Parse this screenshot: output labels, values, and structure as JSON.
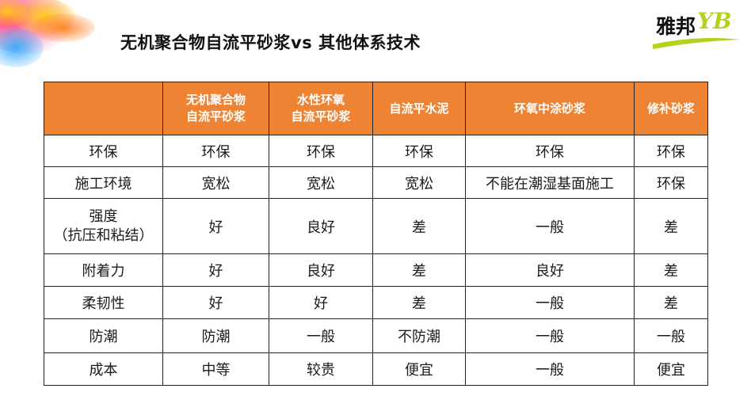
{
  "slide": {
    "title": "无机聚合物自流平砂浆vs 其他体系技术",
    "logo": {
      "text": "雅邦",
      "mark": "YB"
    }
  },
  "table": {
    "headers": [
      [
        ""
      ],
      [
        "无机聚合物",
        "自流平砂浆"
      ],
      [
        "水性环氧",
        "自流平砂浆"
      ],
      [
        "自流平水泥"
      ],
      [
        "环氧中涂砂浆"
      ],
      [
        "修补砂浆"
      ]
    ],
    "rows": [
      {
        "label": [
          "环保"
        ],
        "cells": [
          "环保",
          "环保",
          "环保",
          "环保",
          "环保"
        ]
      },
      {
        "label": [
          "施工环境"
        ],
        "cells": [
          "宽松",
          "宽松",
          "宽松",
          "不能在潮湿基面施工",
          "环保"
        ]
      },
      {
        "label": [
          "强度",
          "（抗压和粘结）"
        ],
        "cells": [
          "好",
          "良好",
          "差",
          "一般",
          "差"
        ]
      },
      {
        "label": [
          "附着力"
        ],
        "cells": [
          "好",
          "良好",
          "差",
          "良好",
          "差"
        ]
      },
      {
        "label": [
          "柔韧性"
        ],
        "cells": [
          "好",
          "好",
          "差",
          "一般",
          "差"
        ]
      },
      {
        "label": [
          "防潮"
        ],
        "cells": [
          "防潮",
          "一般",
          "不防潮",
          "一般",
          "一般"
        ]
      },
      {
        "label": [
          "成本"
        ],
        "cells": [
          "中等",
          "较贵",
          "便宜",
          "一般",
          "便宜"
        ]
      }
    ]
  },
  "colors": {
    "header_bg": "#ee8433",
    "header_text": "#ffffff",
    "logo_accent": "#b4d21c"
  }
}
